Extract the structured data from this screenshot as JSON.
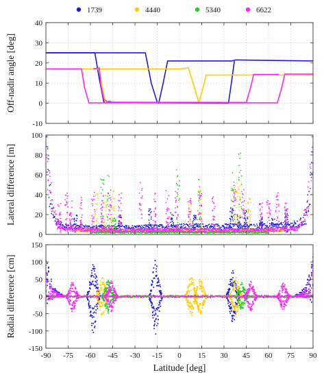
{
  "chart_data": [
    {
      "type": "line",
      "ylabel": "Off-nadir angle [deg]",
      "xlim": [
        -90,
        90
      ],
      "ylim": [
        -10,
        40
      ],
      "yticks": [
        -10,
        0,
        10,
        20,
        30,
        40
      ],
      "grid": true,
      "series": [
        {
          "name": "1739",
          "color": "#1a1adc",
          "points": [
            [
              -90,
              25
            ],
            [
              -23,
              25
            ],
            [
              -19,
              10
            ],
            [
              -15,
              0.5
            ],
            [
              -14,
              0
            ],
            [
              -11,
              10
            ],
            [
              -8,
              21
            ],
            [
              35,
              21
            ],
            [
              38,
              21.5
            ],
            [
              90,
              21
            ]
          ]
        },
        {
          "name": "1739",
          "color": "#1a1adc",
          "points": [
            [
              -90,
              25
            ],
            [
              -57,
              25
            ],
            [
              -54,
              12
            ],
            [
              -51,
              0.7
            ],
            [
              -50,
              0.5
            ],
            [
              30,
              0
            ],
            [
              33,
              0
            ],
            [
              35,
              10
            ],
            [
              37,
              21
            ]
          ]
        },
        {
          "name": "4440",
          "color": "#ffcc00",
          "points": [
            [
              -90,
              17
            ],
            [
              -52,
              17
            ],
            [
              0,
              17
            ],
            [
              6,
              17.5
            ],
            [
              10,
              8
            ],
            [
              13,
              0.3
            ],
            [
              16,
              8
            ],
            [
              18,
              14
            ],
            [
              90,
              14
            ]
          ]
        },
        {
          "name": "4440",
          "color": "#ffcc00",
          "points": [
            [
              -54,
              17
            ],
            [
              -52,
              8
            ],
            [
              -50,
              0.5
            ],
            [
              -48,
              1
            ]
          ]
        },
        {
          "name": "5340",
          "color": "#22cc22",
          "points": [
            [
              -48,
              1
            ],
            [
              -47,
              1
            ],
            [
              -46,
              0.8
            ]
          ]
        },
        {
          "name": "6622",
          "color": "#ff22ff",
          "points": [
            [
              -90,
              17
            ],
            [
              -66,
              17
            ],
            [
              -64,
              8
            ],
            [
              -61,
              0.2
            ],
            [
              66,
              0.2
            ],
            [
              69,
              8
            ],
            [
              71,
              14.5
            ],
            [
              90,
              14.5
            ]
          ]
        },
        {
          "name": "6622",
          "color": "#ff22ff",
          "points": [
            [
              -58,
              17
            ],
            [
              -54,
              17.5
            ],
            [
              -53,
              9
            ],
            [
              -51,
              2
            ],
            [
              -48,
              0.5
            ],
            [
              45,
              0.4
            ],
            [
              48,
              8
            ],
            [
              50,
              14.3
            ],
            [
              67,
              14.3
            ]
          ]
        }
      ]
    },
    {
      "type": "scatter",
      "ylabel": "Lateral difference [m]",
      "xlim": [
        -90,
        90
      ],
      "ylim": [
        0,
        100
      ],
      "yticks": [
        0,
        20,
        40,
        60,
        80,
        100
      ],
      "grid": true,
      "series": [
        {
          "name": "1739",
          "color": "#1a1adc",
          "baseline": [
            [
              -90,
              90
            ],
            [
              -88,
              40
            ],
            [
              -85,
              15
            ],
            [
              -80,
              8
            ],
            [
              -60,
              6
            ],
            [
              -30,
              6
            ],
            [
              0,
              7
            ],
            [
              30,
              7
            ],
            [
              60,
              7
            ],
            [
              80,
              9
            ],
            [
              85,
              15
            ],
            [
              88,
              40
            ],
            [
              90,
              90
            ]
          ],
          "spikes": [
            [
              -70,
              18
            ],
            [
              -40,
              18
            ],
            [
              -20,
              25
            ],
            [
              -5,
              20
            ],
            [
              10,
              18
            ],
            [
              35,
              28
            ],
            [
              40,
              20
            ],
            [
              45,
              22
            ],
            [
              55,
              15
            ],
            [
              63,
              16
            ],
            [
              72,
              22
            ]
          ]
        },
        {
          "name": "4440",
          "color": "#ffcc00",
          "baseline": [
            [
              -70,
              4
            ],
            [
              -40,
              3
            ],
            [
              0,
              3
            ],
            [
              30,
              3
            ],
            [
              70,
              4
            ]
          ],
          "spikes": [
            [
              -56,
              40
            ],
            [
              -50,
              38
            ],
            [
              -45,
              42
            ],
            [
              7,
              30
            ],
            [
              14,
              45
            ],
            [
              38,
              50
            ],
            [
              40,
              60
            ],
            [
              47,
              35
            ]
          ]
        },
        {
          "name": "5340",
          "color": "#22cc22",
          "baseline": [
            [
              -60,
              2
            ],
            [
              -30,
              2
            ],
            [
              0,
              2
            ],
            [
              30,
              2
            ],
            [
              60,
              2
            ]
          ],
          "spikes": [
            [
              -52,
              55
            ],
            [
              -48,
              60
            ],
            [
              -44,
              15
            ],
            [
              -1,
              63
            ],
            [
              13,
              56
            ],
            [
              36,
              60
            ],
            [
              41,
              80
            ]
          ]
        },
        {
          "name": "6622",
          "color": "#ff22ff",
          "baseline": [
            [
              -90,
              85
            ],
            [
              -88,
              50
            ],
            [
              -85,
              20
            ],
            [
              -80,
              6
            ],
            [
              -60,
              4
            ],
            [
              -30,
              4
            ],
            [
              0,
              4
            ],
            [
              30,
              4
            ],
            [
              60,
              4
            ],
            [
              80,
              6
            ],
            [
              85,
              20
            ],
            [
              88,
              50
            ],
            [
              90,
              82
            ]
          ],
          "spikes": [
            [
              -81,
              30
            ],
            [
              -76,
              40
            ],
            [
              -73,
              35
            ],
            [
              -66,
              36
            ],
            [
              -58,
              42
            ],
            [
              -52,
              38
            ],
            [
              -47,
              44
            ],
            [
              -40,
              40
            ],
            [
              -26,
              52
            ],
            [
              -17,
              40
            ],
            [
              -8,
              44
            ],
            [
              -2,
              42
            ],
            [
              7,
              36
            ],
            [
              14,
              46
            ],
            [
              23,
              38
            ],
            [
              37,
              50
            ],
            [
              43,
              48
            ],
            [
              55,
              30
            ],
            [
              60,
              34
            ],
            [
              66,
              48
            ],
            [
              72,
              30
            ]
          ]
        }
      ]
    },
    {
      "type": "scatter",
      "ylabel": "Radial difference [cm]",
      "xlabel": "Latitude [deg]",
      "xlim": [
        -90,
        90
      ],
      "ylim": [
        -150,
        150
      ],
      "yticks": [
        -150,
        -100,
        -50,
        0,
        50,
        100,
        150
      ],
      "xticks": [
        -90,
        -75,
        -60,
        -45,
        -30,
        -15,
        0,
        15,
        30,
        45,
        60,
        75,
        90
      ],
      "grid": true,
      "series": [
        {
          "name": "1739",
          "color": "#1a1adc",
          "edges": [
            [
              -90,
              140
            ],
            [
              90,
              140
            ]
          ],
          "clusters": [
            [
              -58,
              105
            ],
            [
              -16,
              110
            ],
            [
              36,
              80
            ]
          ]
        },
        {
          "name": "4440",
          "color": "#ffcc00",
          "clusters": [
            [
              -52,
              55
            ],
            [
              8,
              60
            ],
            [
              14,
              55
            ],
            [
              38,
              60
            ]
          ]
        },
        {
          "name": "5340",
          "color": "#22cc22",
          "clusters": [
            [
              -48,
              50
            ],
            [
              42,
              40
            ]
          ]
        },
        {
          "name": "6622",
          "color": "#ff22ff",
          "edges": [
            [
              -90,
              95
            ],
            [
              90,
              95
            ]
          ],
          "clusters": [
            [
              -72,
              45
            ],
            [
              -46,
              45
            ],
            [
              48,
              45
            ],
            [
              70,
              40
            ]
          ]
        }
      ]
    }
  ]
}
